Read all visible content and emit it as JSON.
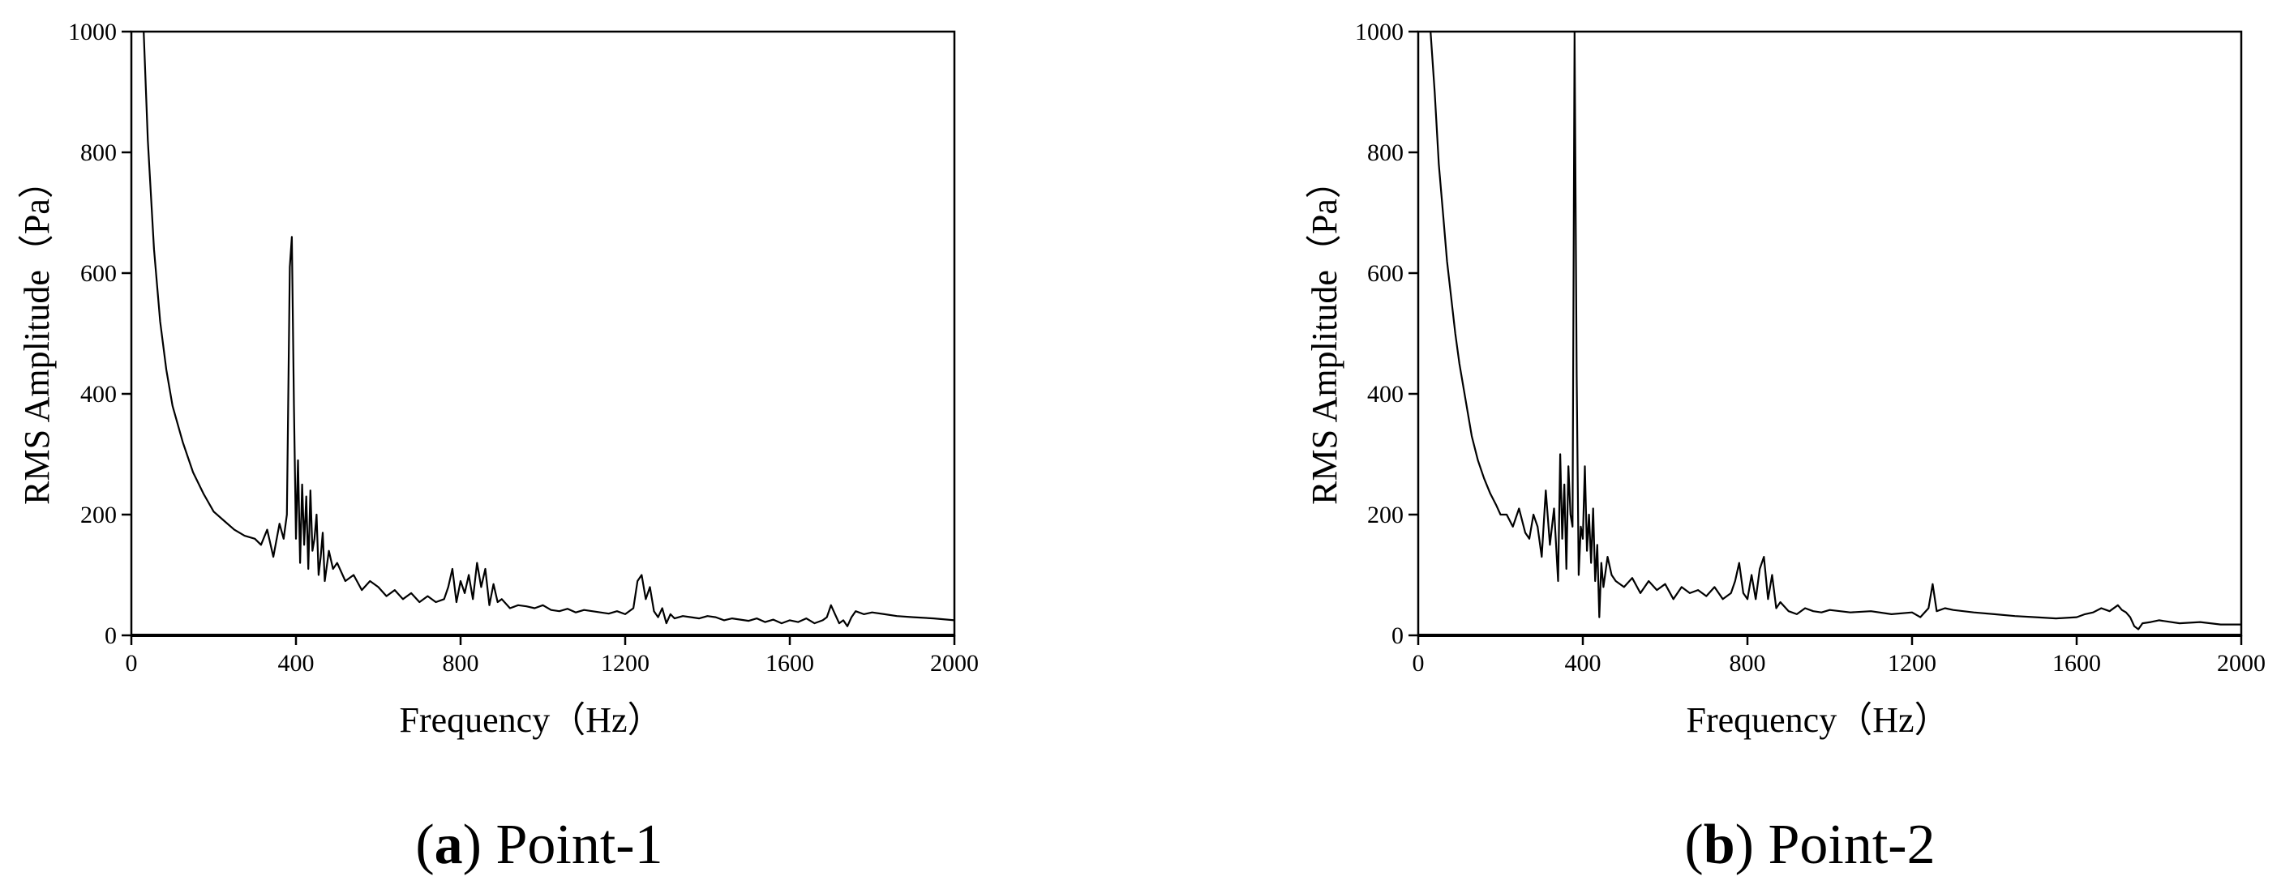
{
  "chart_data": [
    {
      "type": "line",
      "caption": {
        "letter": "a",
        "text": "Point-1"
      },
      "xlabel": "Frequency（Hz）",
      "ylabel": "RMS Amplitude（Pa）",
      "xlim": [
        0,
        2000
      ],
      "ylim": [
        0,
        1000
      ],
      "xticks": [
        "0",
        "400",
        "800",
        "1200",
        "1600",
        "2000"
      ],
      "yticks": [
        "0",
        "200",
        "400",
        "600",
        "800",
        "1000"
      ],
      "grid": false,
      "legend": "none",
      "series": [
        {
          "x": [
            30,
            40,
            55,
            70,
            85,
            100,
            125,
            150,
            175,
            200,
            225,
            250,
            275,
            300,
            315,
            330,
            345,
            360,
            370,
            378,
            385,
            390,
            395,
            400,
            405,
            410,
            415,
            420,
            425,
            430,
            435,
            440,
            445,
            450,
            455,
            460,
            465,
            470,
            480,
            490,
            500,
            520,
            540,
            560,
            580,
            600,
            620,
            640,
            660,
            680,
            700,
            720,
            740,
            760,
            770,
            780,
            790,
            800,
            810,
            820,
            830,
            840,
            850,
            860,
            870,
            880,
            890,
            900,
            920,
            940,
            960,
            980,
            1000,
            1020,
            1040,
            1060,
            1080,
            1100,
            1120,
            1140,
            1160,
            1180,
            1200,
            1220,
            1230,
            1240,
            1250,
            1260,
            1270,
            1280,
            1290,
            1300,
            1310,
            1320,
            1340,
            1360,
            1380,
            1400,
            1420,
            1440,
            1460,
            1480,
            1500,
            1520,
            1540,
            1560,
            1580,
            1600,
            1620,
            1640,
            1660,
            1680,
            1690,
            1700,
            1710,
            1720,
            1730,
            1740,
            1750,
            1760,
            1780,
            1800,
            1830,
            1860,
            1900,
            1950,
            2000
          ],
          "y": [
            1000,
            820,
            640,
            520,
            440,
            380,
            320,
            270,
            235,
            205,
            190,
            175,
            165,
            160,
            150,
            175,
            130,
            185,
            160,
            200,
            610,
            660,
            380,
            160,
            290,
            120,
            250,
            150,
            230,
            110,
            240,
            140,
            160,
            200,
            100,
            130,
            170,
            90,
            140,
            110,
            120,
            90,
            100,
            75,
            90,
            80,
            65,
            75,
            60,
            70,
            55,
            65,
            55,
            60,
            80,
            110,
            55,
            90,
            70,
            100,
            60,
            120,
            80,
            110,
            50,
            85,
            55,
            60,
            45,
            50,
            48,
            45,
            50,
            42,
            40,
            44,
            38,
            42,
            40,
            38,
            36,
            40,
            35,
            45,
            90,
            100,
            60,
            80,
            40,
            30,
            45,
            20,
            35,
            28,
            32,
            30,
            28,
            32,
            30,
            25,
            28,
            26,
            24,
            28,
            22,
            26,
            20,
            25,
            22,
            28,
            20,
            25,
            30,
            50,
            35,
            20,
            25,
            15,
            30,
            40,
            35,
            38,
            35,
            32,
            30,
            28,
            25
          ]
        }
      ]
    },
    {
      "type": "line",
      "caption": {
        "letter": "b",
        "text": "Point-2"
      },
      "xlabel": "Frequency（Hz）",
      "ylabel": "RMS Amplitude（Pa）",
      "xlim": [
        0,
        2000
      ],
      "ylim": [
        0,
        1000
      ],
      "xticks": [
        "0",
        "400",
        "800",
        "1200",
        "1600",
        "2000"
      ],
      "yticks": [
        "0",
        "200",
        "400",
        "600",
        "800",
        "1000"
      ],
      "grid": false,
      "legend": "none",
      "series": [
        {
          "x": [
            30,
            40,
            50,
            60,
            70,
            80,
            90,
            100,
            115,
            130,
            145,
            160,
            175,
            190,
            200,
            215,
            230,
            245,
            260,
            270,
            280,
            290,
            300,
            310,
            320,
            330,
            340,
            345,
            350,
            355,
            360,
            365,
            370,
            375,
            380,
            385,
            390,
            395,
            400,
            405,
            410,
            415,
            420,
            425,
            430,
            435,
            440,
            445,
            450,
            460,
            470,
            480,
            500,
            520,
            540,
            560,
            580,
            600,
            620,
            640,
            660,
            680,
            700,
            720,
            740,
            760,
            770,
            780,
            790,
            800,
            810,
            820,
            830,
            840,
            850,
            860,
            870,
            880,
            900,
            920,
            940,
            960,
            980,
            1000,
            1050,
            1100,
            1150,
            1200,
            1220,
            1240,
            1250,
            1260,
            1280,
            1300,
            1350,
            1400,
            1450,
            1500,
            1550,
            1600,
            1620,
            1640,
            1660,
            1680,
            1700,
            1710,
            1720,
            1730,
            1740,
            1750,
            1760,
            1780,
            1800,
            1850,
            1900,
            1950,
            2000
          ],
          "y": [
            1000,
            900,
            780,
            700,
            620,
            560,
            500,
            450,
            390,
            330,
            290,
            260,
            235,
            215,
            200,
            200,
            180,
            210,
            170,
            160,
            200,
            180,
            130,
            240,
            150,
            210,
            90,
            300,
            160,
            250,
            110,
            280,
            200,
            180,
            1000,
            430,
            100,
            180,
            160,
            280,
            140,
            200,
            120,
            210,
            90,
            150,
            30,
            120,
            80,
            130,
            100,
            90,
            80,
            95,
            70,
            90,
            75,
            85,
            60,
            80,
            70,
            75,
            65,
            80,
            60,
            70,
            90,
            120,
            70,
            60,
            100,
            60,
            110,
            130,
            60,
            100,
            45,
            55,
            40,
            35,
            45,
            40,
            38,
            42,
            38,
            40,
            35,
            38,
            30,
            45,
            85,
            40,
            45,
            42,
            38,
            35,
            32,
            30,
            28,
            30,
            35,
            38,
            45,
            40,
            50,
            42,
            38,
            30,
            15,
            10,
            20,
            22,
            25,
            20,
            22,
            18,
            18
          ]
        }
      ]
    }
  ]
}
